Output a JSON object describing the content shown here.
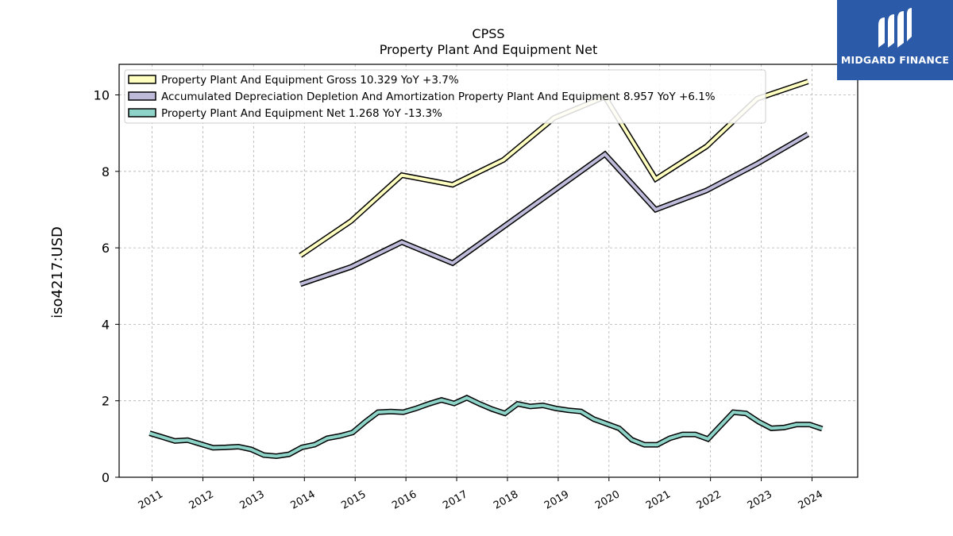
{
  "branding": {
    "logo_text": "MIDGARD FINANCE",
    "logo_color": "#2b5aa8"
  },
  "chart_data": {
    "type": "line",
    "title": "CPSS",
    "subtitle": "Property Plant And Equipment Net",
    "xlabel": "",
    "ylabel": "iso4217:USD",
    "ylim": [
      0,
      10.8
    ],
    "xlim": [
      2010.35,
      2024.9
    ],
    "y_ticks": [
      0,
      2,
      4,
      6,
      8,
      10
    ],
    "x_ticks": [
      "2011",
      "2012",
      "2013",
      "2014",
      "2015",
      "2016",
      "2017",
      "2018",
      "2019",
      "2020",
      "2021",
      "2022",
      "2023",
      "2024"
    ],
    "grid": true,
    "legend_position": "top-left",
    "series": [
      {
        "name": "Property Plant And Equipment Gross",
        "legend": "Property Plant And Equipment Gross  10.329 YoY +3.7%",
        "color": "#ffffbf",
        "x": [
          2013.92,
          2014.92,
          2015.92,
          2016.92,
          2017.92,
          2018.92,
          2019.92,
          2020.92,
          2021.92,
          2022.92,
          2023.92
        ],
        "y": [
          5.8,
          6.7,
          7.9,
          7.65,
          8.3,
          9.4,
          9.95,
          7.8,
          8.65,
          9.9,
          10.35
        ]
      },
      {
        "name": "Accumulated Depreciation Depletion And Amortization Property Plant And Equipment",
        "legend": "Accumulated Depreciation Depletion And Amortization Property Plant And Equipment  8.957 YoY +6.1%",
        "color": "#bebada",
        "x": [
          2013.92,
          2014.92,
          2015.92,
          2016.92,
          2017.92,
          2018.92,
          2019.92,
          2020.92,
          2021.92,
          2022.92,
          2023.92
        ],
        "y": [
          5.05,
          5.5,
          6.15,
          5.6,
          6.55,
          7.5,
          8.45,
          7.0,
          7.5,
          8.2,
          8.97
        ]
      },
      {
        "name": "Property Plant And Equipment Net",
        "legend": "Property Plant And Equipment Net  1.268 YoY -13.3%",
        "color": "#8dd3c7",
        "x": [
          2010.95,
          2011.2,
          2011.45,
          2011.7,
          2011.95,
          2012.2,
          2012.45,
          2012.7,
          2012.95,
          2013.2,
          2013.45,
          2013.7,
          2013.95,
          2014.2,
          2014.45,
          2014.7,
          2014.95,
          2015.2,
          2015.45,
          2015.7,
          2015.95,
          2016.2,
          2016.45,
          2016.7,
          2016.95,
          2017.2,
          2017.45,
          2017.7,
          2017.95,
          2018.2,
          2018.45,
          2018.7,
          2018.95,
          2019.2,
          2019.45,
          2019.7,
          2019.95,
          2020.2,
          2020.45,
          2020.7,
          2020.95,
          2021.2,
          2021.45,
          2021.7,
          2021.95,
          2022.2,
          2022.45,
          2022.7,
          2022.95,
          2023.2,
          2023.45,
          2023.7,
          2023.95,
          2024.2
        ],
        "y": [
          1.15,
          1.05,
          0.95,
          0.97,
          0.87,
          0.77,
          0.78,
          0.8,
          0.73,
          0.58,
          0.55,
          0.6,
          0.78,
          0.85,
          1.02,
          1.08,
          1.17,
          1.45,
          1.7,
          1.72,
          1.7,
          1.8,
          1.92,
          2.02,
          1.93,
          2.08,
          1.92,
          1.78,
          1.67,
          1.92,
          1.85,
          1.88,
          1.8,
          1.75,
          1.72,
          1.52,
          1.4,
          1.28,
          0.98,
          0.85,
          0.85,
          1.02,
          1.12,
          1.12,
          1.0,
          1.35,
          1.7,
          1.67,
          1.45,
          1.28,
          1.3,
          1.38,
          1.38,
          1.27
        ]
      }
    ]
  }
}
